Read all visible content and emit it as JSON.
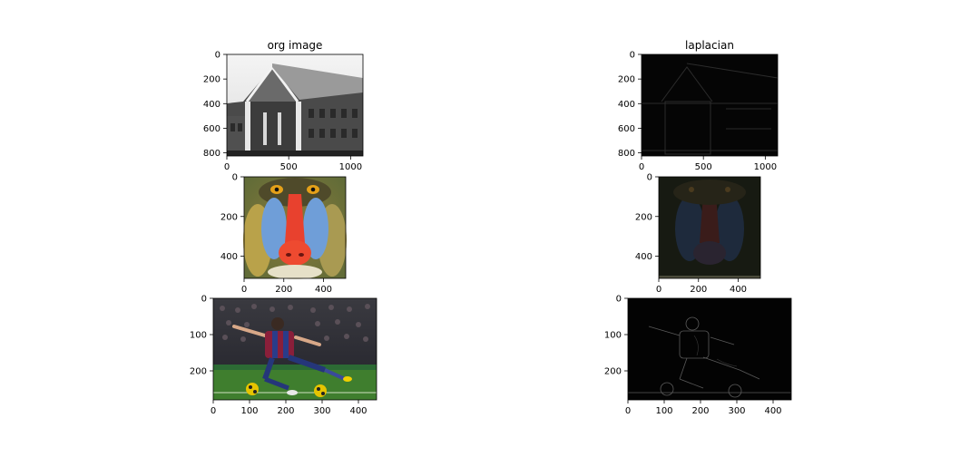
{
  "chart_data": [
    {
      "type": "image",
      "title": "org image",
      "image_content": "grayscale photo of brick building",
      "tone": "grayscale",
      "xlim": [
        0,
        1100
      ],
      "ylim": [
        825,
        0
      ],
      "xticks": [
        0,
        500,
        1000
      ],
      "yticks": [
        0,
        200,
        400,
        600,
        800
      ]
    },
    {
      "type": "image",
      "title": "laplacian",
      "image_content": "laplacian edge map of building",
      "tone": "dark",
      "xlim": [
        0,
        1100
      ],
      "ylim": [
        825,
        0
      ],
      "xticks": [
        0,
        500,
        1000
      ],
      "yticks": [
        0,
        200,
        400,
        600,
        800
      ]
    },
    {
      "type": "image",
      "title": "",
      "image_content": "color photo of mandrill face",
      "tone": "color",
      "xlim": [
        0,
        512
      ],
      "ylim": [
        512,
        0
      ],
      "xticks": [
        0,
        200,
        400
      ],
      "yticks": [
        0,
        200,
        400
      ]
    },
    {
      "type": "image",
      "title": "",
      "image_content": "laplacian of mandrill",
      "tone": "dark",
      "xlim": [
        0,
        512
      ],
      "ylim": [
        512,
        0
      ],
      "xticks": [
        0,
        200,
        400
      ],
      "yticks": [
        0,
        200,
        400
      ]
    },
    {
      "type": "image",
      "title": "",
      "image_content": "color photo of soccer player kicking ball",
      "tone": "color",
      "xlim": [
        0,
        450
      ],
      "ylim": [
        280,
        0
      ],
      "xticks": [
        0,
        100,
        200,
        300,
        400
      ],
      "yticks": [
        0,
        100,
        200
      ]
    },
    {
      "type": "image",
      "title": "",
      "image_content": "laplacian edge map of soccer player",
      "tone": "dark",
      "xlim": [
        0,
        450
      ],
      "ylim": [
        280,
        0
      ],
      "xticks": [
        0,
        100,
        200,
        300,
        400
      ],
      "yticks": [
        0,
        100,
        200
      ]
    }
  ]
}
